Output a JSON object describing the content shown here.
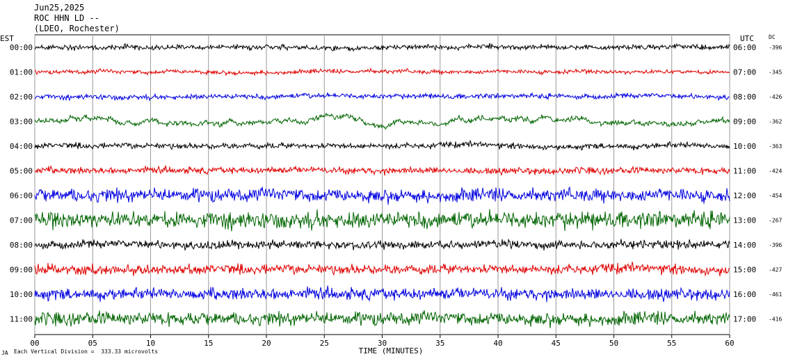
{
  "header": {
    "date": "Jun25,2025",
    "station": "ROC HHN LD --",
    "network": "(LDEO, Rochester)"
  },
  "left_zone_label": "EST",
  "right_zone_label": "UTC",
  "dc_label": "DC",
  "footer": {
    "logo_text": "JA",
    "scale_text": "Each Vertical Division =  333.33 microvolts"
  },
  "chart_data": {
    "type": "line",
    "title": "",
    "xlabel": "TIME (MINUTES)",
    "ylabel": "",
    "xlim": [
      0,
      60
    ],
    "x_ticks": [
      "00",
      "05",
      "10",
      "15",
      "20",
      "25",
      "30",
      "35",
      "40",
      "45",
      "50",
      "55",
      "60"
    ],
    "colors": [
      "#000000",
      "#e00000",
      "#0000e0",
      "#006400"
    ],
    "rows": [
      {
        "est": "00:00",
        "utc": "06:00",
        "dc": "-396",
        "color": "#000000"
      },
      {
        "est": "01:00",
        "utc": "07:00",
        "dc": "-345",
        "color": "#e00000"
      },
      {
        "est": "02:00",
        "utc": "08:00",
        "dc": "-426",
        "color": "#0000e0"
      },
      {
        "est": "03:00",
        "utc": "09:00",
        "dc": "-362",
        "color": "#006400"
      },
      {
        "est": "04:00",
        "utc": "10:00",
        "dc": "-363",
        "color": "#000000"
      },
      {
        "est": "05:00",
        "utc": "11:00",
        "dc": "-424",
        "color": "#e00000"
      },
      {
        "est": "06:00",
        "utc": "12:00",
        "dc": "-454",
        "color": "#0000e0"
      },
      {
        "est": "07:00",
        "utc": "13:00",
        "dc": "-267",
        "color": "#006400"
      },
      {
        "est": "08:00",
        "utc": "14:00",
        "dc": "-396",
        "color": "#000000"
      },
      {
        "est": "09:00",
        "utc": "15:00",
        "dc": "-427",
        "color": "#e00000"
      },
      {
        "est": "10:00",
        "utc": "16:00",
        "dc": "-461",
        "color": "#0000e0"
      },
      {
        "est": "11:00",
        "utc": "17:00",
        "dc": "-416",
        "color": "#006400"
      }
    ]
  }
}
